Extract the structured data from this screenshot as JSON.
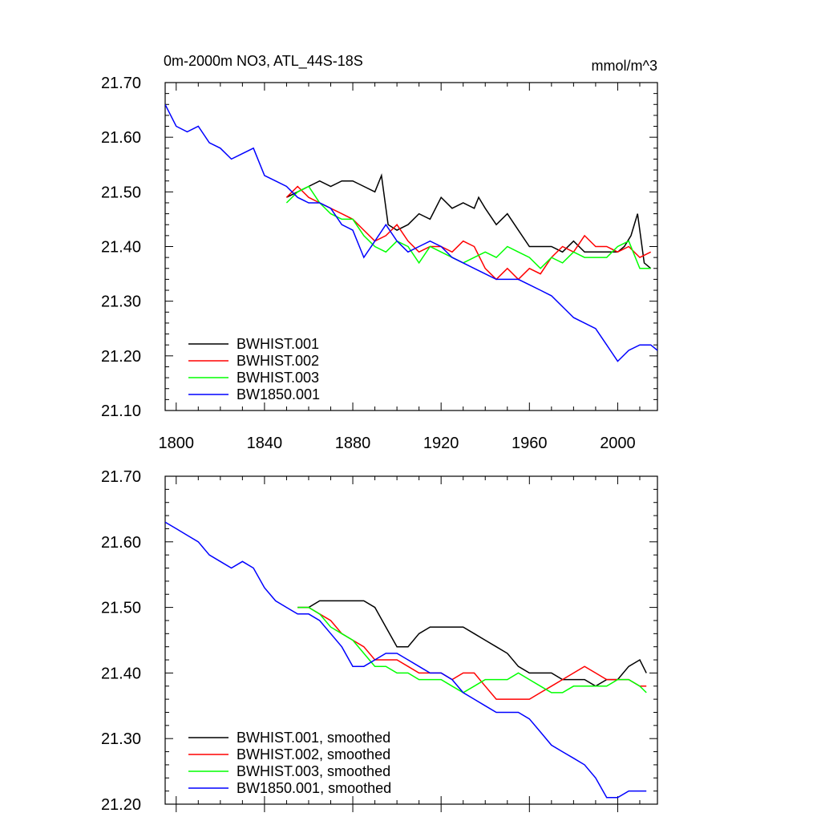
{
  "chart_data": [
    {
      "type": "line",
      "title_left": "0m-2000m NO3, ATL_44S-18S",
      "title_right": "mmol/m^3",
      "xlim": [
        1795,
        2018
      ],
      "ylim": [
        21.1,
        21.7
      ],
      "yticks": [
        "21.10",
        "21.20",
        "21.30",
        "21.40",
        "21.50",
        "21.60",
        "21.70"
      ],
      "xticks": [
        "1800",
        "1840",
        "1880",
        "1920",
        "1960",
        "2000"
      ],
      "legend_placement": "bottom-left",
      "series": [
        {
          "name": "BWHIST.001",
          "color": "#000000",
          "x": [
            1850,
            1855,
            1860,
            1865,
            1870,
            1875,
            1880,
            1885,
            1890,
            1893,
            1896,
            1900,
            1905,
            1910,
            1915,
            1920,
            1925,
            1930,
            1935,
            1937,
            1940,
            1945,
            1950,
            1955,
            1960,
            1965,
            1970,
            1975,
            1980,
            1985,
            1990,
            1995,
            2000,
            2003,
            2006,
            2009,
            2012,
            2015
          ],
          "y": [
            21.49,
            21.5,
            21.51,
            21.52,
            21.51,
            21.52,
            21.52,
            21.51,
            21.5,
            21.53,
            21.44,
            21.43,
            21.44,
            21.46,
            21.45,
            21.49,
            21.47,
            21.48,
            21.47,
            21.49,
            21.47,
            21.44,
            21.46,
            21.43,
            21.4,
            21.4,
            21.4,
            21.39,
            21.41,
            21.39,
            21.39,
            21.39,
            21.39,
            21.4,
            21.42,
            21.46,
            21.37,
            21.36
          ]
        },
        {
          "name": "BWHIST.002",
          "color": "#ff0000",
          "x": [
            1850,
            1855,
            1860,
            1865,
            1870,
            1875,
            1880,
            1885,
            1890,
            1895,
            1900,
            1905,
            1910,
            1915,
            1920,
            1925,
            1930,
            1935,
            1940,
            1945,
            1950,
            1955,
            1960,
            1965,
            1970,
            1975,
            1980,
            1985,
            1990,
            1995,
            2000,
            2005,
            2010,
            2015
          ],
          "y": [
            21.49,
            21.51,
            21.49,
            21.48,
            21.47,
            21.46,
            21.45,
            21.43,
            21.41,
            21.42,
            21.44,
            21.41,
            21.39,
            21.4,
            21.4,
            21.39,
            21.41,
            21.4,
            21.36,
            21.34,
            21.36,
            21.34,
            21.36,
            21.35,
            21.38,
            21.4,
            21.39,
            21.42,
            21.4,
            21.4,
            21.39,
            21.4,
            21.38,
            21.39
          ]
        },
        {
          "name": "BWHIST.003",
          "color": "#00ff00",
          "x": [
            1850,
            1855,
            1860,
            1865,
            1870,
            1875,
            1880,
            1885,
            1890,
            1895,
            1900,
            1905,
            1910,
            1915,
            1920,
            1925,
            1930,
            1935,
            1940,
            1945,
            1950,
            1955,
            1960,
            1965,
            1970,
            1975,
            1980,
            1985,
            1990,
            1995,
            2000,
            2005,
            2010,
            2015
          ],
          "y": [
            21.48,
            21.5,
            21.51,
            21.48,
            21.46,
            21.45,
            21.45,
            21.42,
            21.4,
            21.39,
            21.41,
            21.4,
            21.37,
            21.4,
            21.39,
            21.38,
            21.37,
            21.38,
            21.39,
            21.38,
            21.4,
            21.39,
            21.38,
            21.36,
            21.38,
            21.37,
            21.39,
            21.38,
            21.38,
            21.38,
            21.4,
            21.41,
            21.36,
            21.36
          ]
        },
        {
          "name": "BW1850.001",
          "color": "#0000ff",
          "x": [
            1795,
            1800,
            1805,
            1810,
            1815,
            1820,
            1825,
            1830,
            1835,
            1840,
            1845,
            1850,
            1855,
            1860,
            1865,
            1870,
            1875,
            1880,
            1885,
            1890,
            1895,
            1900,
            1905,
            1910,
            1915,
            1920,
            1925,
            1930,
            1935,
            1940,
            1945,
            1950,
            1955,
            1960,
            1965,
            1970,
            1975,
            1980,
            1985,
            1990,
            1995,
            2000,
            2005,
            2010,
            2015,
            2018
          ],
          "y": [
            21.66,
            21.62,
            21.61,
            21.62,
            21.59,
            21.58,
            21.56,
            21.57,
            21.58,
            21.53,
            21.52,
            21.51,
            21.49,
            21.48,
            21.48,
            21.47,
            21.44,
            21.43,
            21.38,
            21.41,
            21.44,
            21.41,
            21.39,
            21.4,
            21.41,
            21.4,
            21.38,
            21.37,
            21.36,
            21.35,
            21.34,
            21.34,
            21.34,
            21.33,
            21.32,
            21.31,
            21.29,
            21.27,
            21.26,
            21.25,
            21.22,
            21.19,
            21.21,
            21.22,
            21.22,
            21.21
          ]
        }
      ]
    },
    {
      "type": "line",
      "xlim": [
        1795,
        2018
      ],
      "ylim": [
        21.2,
        21.7
      ],
      "yticks": [
        "21.20",
        "21.30",
        "21.40",
        "21.50",
        "21.60",
        "21.70"
      ],
      "legend_placement": "bottom-left",
      "series": [
        {
          "name": "BWHIST.001, smoothed",
          "color": "#000000",
          "x": [
            1855,
            1860,
            1865,
            1870,
            1875,
            1880,
            1885,
            1890,
            1895,
            1900,
            1905,
            1910,
            1915,
            1920,
            1925,
            1930,
            1935,
            1940,
            1945,
            1950,
            1955,
            1960,
            1965,
            1970,
            1975,
            1980,
            1985,
            1990,
            1995,
            2000,
            2005,
            2010,
            2013
          ],
          "y": [
            21.5,
            21.5,
            21.51,
            21.51,
            21.51,
            21.51,
            21.51,
            21.5,
            21.47,
            21.44,
            21.44,
            21.46,
            21.47,
            21.47,
            21.47,
            21.47,
            21.46,
            21.45,
            21.44,
            21.43,
            21.41,
            21.4,
            21.4,
            21.4,
            21.39,
            21.39,
            21.39,
            21.38,
            21.39,
            21.39,
            21.41,
            21.42,
            21.4
          ]
        },
        {
          "name": "BWHIST.002, smoothed",
          "color": "#ff0000",
          "x": [
            1855,
            1860,
            1865,
            1870,
            1875,
            1880,
            1885,
            1890,
            1895,
            1900,
            1905,
            1910,
            1915,
            1920,
            1925,
            1930,
            1935,
            1940,
            1945,
            1950,
            1955,
            1960,
            1965,
            1970,
            1975,
            1980,
            1985,
            1990,
            1995,
            2000,
            2005,
            2010,
            2013
          ],
          "y": [
            21.5,
            21.5,
            21.49,
            21.48,
            21.46,
            21.45,
            21.44,
            21.42,
            21.42,
            21.42,
            21.41,
            21.4,
            21.4,
            21.4,
            21.39,
            21.4,
            21.4,
            21.38,
            21.36,
            21.36,
            21.36,
            21.36,
            21.37,
            21.38,
            21.39,
            21.4,
            21.41,
            21.4,
            21.39,
            21.39,
            21.39,
            21.38,
            21.38
          ]
        },
        {
          "name": "BWHIST.003, smoothed",
          "color": "#00ff00",
          "x": [
            1855,
            1860,
            1865,
            1870,
            1875,
            1880,
            1885,
            1890,
            1895,
            1900,
            1905,
            1910,
            1915,
            1920,
            1925,
            1930,
            1935,
            1940,
            1945,
            1950,
            1955,
            1960,
            1965,
            1970,
            1975,
            1980,
            1985,
            1990,
            1995,
            2000,
            2005,
            2010,
            2013
          ],
          "y": [
            21.5,
            21.5,
            21.49,
            21.47,
            21.46,
            21.45,
            21.43,
            21.41,
            21.41,
            21.4,
            21.4,
            21.39,
            21.39,
            21.39,
            21.38,
            21.37,
            21.38,
            21.39,
            21.39,
            21.39,
            21.4,
            21.39,
            21.38,
            21.37,
            21.37,
            21.38,
            21.38,
            21.38,
            21.38,
            21.39,
            21.39,
            21.38,
            21.37
          ]
        },
        {
          "name": "BW1850.001, smoothed",
          "color": "#0000ff",
          "x": [
            1795,
            1800,
            1805,
            1810,
            1815,
            1820,
            1825,
            1830,
            1835,
            1840,
            1845,
            1850,
            1855,
            1860,
            1865,
            1870,
            1875,
            1880,
            1885,
            1890,
            1895,
            1900,
            1905,
            1910,
            1915,
            1920,
            1925,
            1930,
            1935,
            1940,
            1945,
            1950,
            1955,
            1960,
            1965,
            1970,
            1975,
            1980,
            1985,
            1990,
            1995,
            2000,
            2005,
            2010,
            2013
          ],
          "y": [
            21.63,
            21.62,
            21.61,
            21.6,
            21.58,
            21.57,
            21.56,
            21.57,
            21.56,
            21.53,
            21.51,
            21.5,
            21.49,
            21.49,
            21.48,
            21.46,
            21.44,
            21.41,
            21.41,
            21.42,
            21.43,
            21.43,
            21.42,
            21.41,
            21.4,
            21.4,
            21.39,
            21.37,
            21.36,
            21.35,
            21.34,
            21.34,
            21.34,
            21.33,
            21.31,
            21.29,
            21.28,
            21.27,
            21.26,
            21.24,
            21.21,
            21.21,
            21.22,
            21.22,
            21.22
          ]
        }
      ]
    }
  ]
}
